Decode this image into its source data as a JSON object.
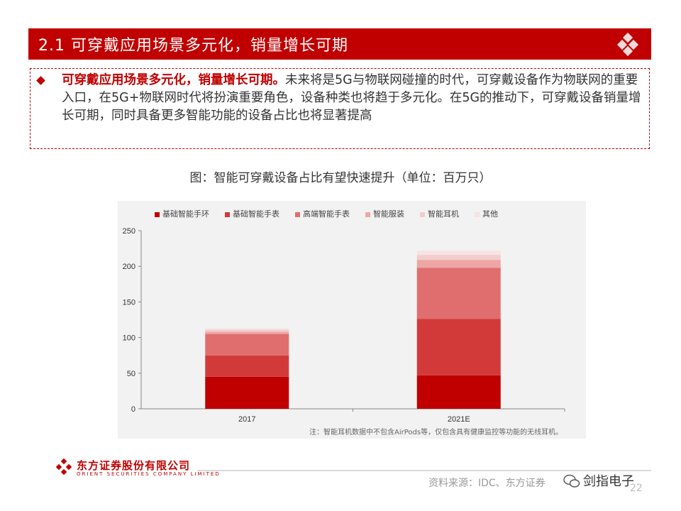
{
  "header": {
    "title": "2.1 可穿戴应用场景多元化，销量增长可期"
  },
  "summary": {
    "highlight": "可穿戴应用场景多元化，销量增长可期。",
    "body": "未来将是5G与物联网碰撞的时代，可穿戴设备作为物联网的重要入口，在5G+物联网时代将扮演重要角色，设备种类也将趋于多元化。在5G的推动下，可穿戴设备销量增长可期，同时具备更多智能功能的设备占比也将显著提高"
  },
  "chart_title": "图：智能可穿戴设备占比有望快速提升（单位：百万只）",
  "chart_data": {
    "type": "bar",
    "stacked": true,
    "categories": [
      "2017",
      "2021E"
    ],
    "series": [
      {
        "name": "基础智能手环",
        "color": "#c00000",
        "values": [
          45,
          47
        ]
      },
      {
        "name": "基础智能手表",
        "color": "#d23a3a",
        "values": [
          30,
          79
        ]
      },
      {
        "name": "高端智能手表",
        "color": "#e06e6e",
        "values": [
          30,
          72
        ]
      },
      {
        "name": "智能服装",
        "color": "#eda6a6",
        "values": [
          3,
          11
        ]
      },
      {
        "name": "智能耳机",
        "color": "#f3cccc",
        "values": [
          3,
          7
        ]
      },
      {
        "name": "其他",
        "color": "#f6e4e4",
        "values": [
          2,
          6
        ]
      }
    ],
    "ylim": [
      0,
      250
    ],
    "yticks": [
      "0",
      "50",
      "100",
      "150",
      "200",
      "250"
    ],
    "grid": false,
    "legend_position": "top"
  },
  "footnote": "注：智能耳机数据中不包含AirPods等，仅包含具有健康监控等功能的无线耳机。",
  "footer": {
    "company_cn": "东方证券股份有限公司",
    "company_en": "ORIENT SECURITIES COMPANY LIMITED",
    "source": "资料来源：IDC、东方证券",
    "watermark": "剑指电子",
    "page_number": "22"
  }
}
